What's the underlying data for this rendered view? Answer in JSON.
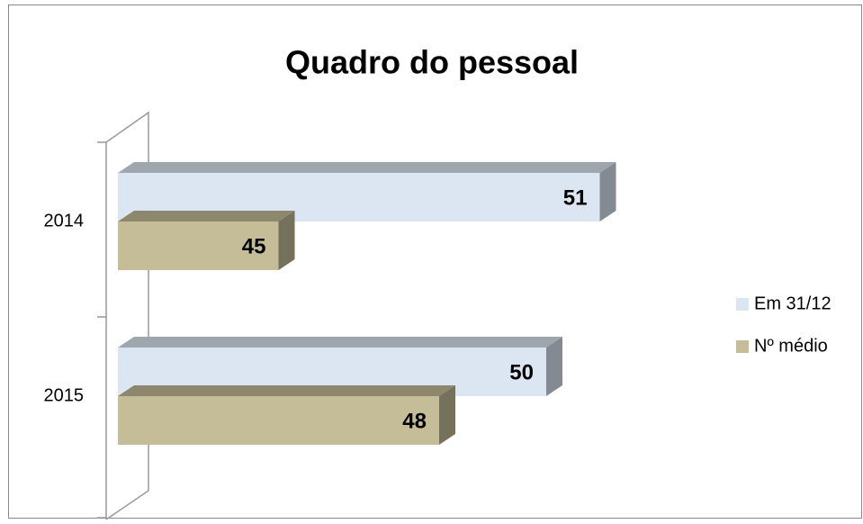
{
  "chart_data": {
    "type": "bar3d_horizontal",
    "title": "Quadro do pessoal",
    "categories": [
      "2014",
      "2015"
    ],
    "series": [
      {
        "name": "Em 31/12",
        "color": "#dce6f2",
        "values": [
          51,
          50
        ]
      },
      {
        "name": "Nº médio",
        "color": "#c4bd97",
        "values": [
          45,
          48
        ]
      }
    ],
    "xlim": [
      42,
      52
    ],
    "legend": "right"
  }
}
